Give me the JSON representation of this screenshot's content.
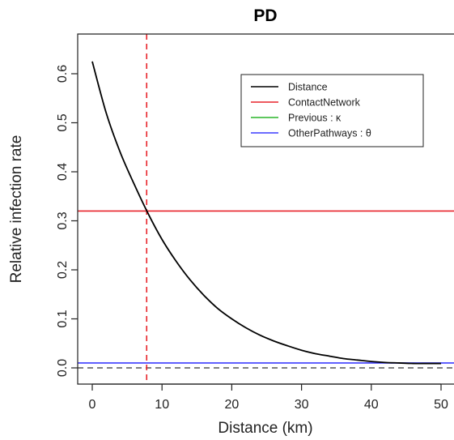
{
  "chart_data": {
    "type": "line",
    "title": "PD",
    "xlabel": "Distance (km)",
    "ylabel": "Relative infection rate",
    "xlim": [
      -2,
      52
    ],
    "ylim": [
      -0.025,
      0.67
    ],
    "x_ticks": [
      0,
      10,
      20,
      30,
      40,
      50
    ],
    "y_ticks": [
      0.0,
      0.1,
      0.2,
      0.3,
      0.4,
      0.5,
      0.6
    ],
    "grid": false,
    "legend_position": "top-right",
    "series": [
      {
        "name": "Distance",
        "color": "#000000",
        "x": [
          0,
          2,
          4,
          6,
          8,
          10,
          12,
          14,
          16,
          18,
          20,
          22,
          24,
          26,
          28,
          30,
          32,
          34,
          36,
          38,
          40,
          42,
          44,
          46,
          48,
          50
        ],
        "y": [
          0.625,
          0.52,
          0.44,
          0.375,
          0.315,
          0.262,
          0.218,
          0.18,
          0.148,
          0.121,
          0.1,
          0.082,
          0.067,
          0.055,
          0.045,
          0.036,
          0.029,
          0.024,
          0.019,
          0.016,
          0.013,
          0.011,
          0.01,
          0.009,
          0.009,
          0.009
        ]
      },
      {
        "name": "ContactNetwork",
        "color": "#e8242b",
        "y_const": 0.32
      },
      {
        "name": "Previous : κ",
        "color": "#2ab52a",
        "y_const": 0.0
      },
      {
        "name": "OtherPathways : θ",
        "color": "#3b3bff",
        "y_const": 0.01
      }
    ],
    "reference_lines": {
      "vertical": {
        "x": 7.8,
        "color": "#e8242b",
        "style": "dashed"
      },
      "horizontal": {
        "y": 0.0,
        "color": "#555555",
        "style": "dashed"
      }
    }
  }
}
